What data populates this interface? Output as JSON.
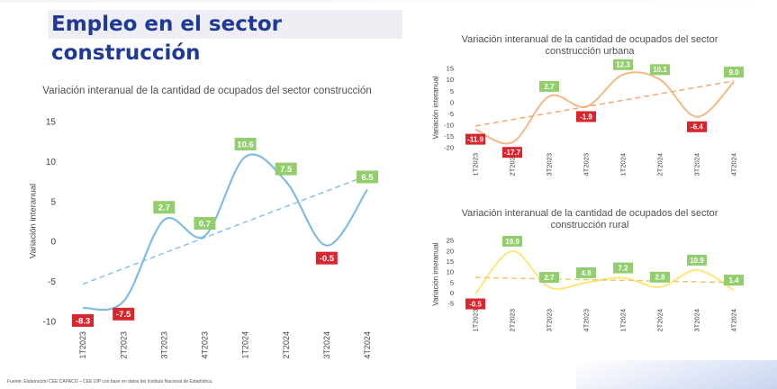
{
  "page_title": "Empleo en el sector construcción",
  "footer": "Fuente: Elaboración CEE CAPACO – CEE UIP con base en datos del Instituto Nacional de Estadística.",
  "chart_data": [
    {
      "id": "total",
      "type": "line",
      "title": "Variación interanual de la cantidad de ocupados del sector construcción",
      "ylabel": "Variación interanual",
      "categories": [
        "1T2023",
        "2T2023",
        "3T2023",
        "4T2023",
        "1T2024",
        "2T2024",
        "3T2024",
        "4T2024"
      ],
      "values": [
        -8.3,
        -7.5,
        2.7,
        0.7,
        10.6,
        7.5,
        -0.5,
        6.5
      ],
      "ylim": [
        -10,
        15
      ],
      "yticks": [
        -10,
        -5,
        0,
        5,
        10,
        15
      ],
      "trendline": true,
      "colors": {
        "line": "#7fbde4",
        "trend": "#7fbde4",
        "positive": "#92cd6e",
        "negative": "#d9262e"
      }
    },
    {
      "id": "urbana",
      "type": "line",
      "title": "Variación interanual de la cantidad de ocupados del sector construcción urbana",
      "ylabel": "Variación interanual",
      "categories": [
        "1T2023",
        "2T2023",
        "3T2023",
        "4T2023",
        "1T2024",
        "2T2024",
        "3T2024",
        "4T2024"
      ],
      "values": [
        -11.9,
        -17.7,
        2.7,
        -1.9,
        12.3,
        10.1,
        -6.4,
        9.0
      ],
      "ylim": [
        -20,
        15
      ],
      "yticks": [
        -20,
        -15,
        -10,
        -5,
        0,
        5,
        10,
        15
      ],
      "trendline": true,
      "colors": {
        "line": "#f5b887",
        "trend": "#f2a56a",
        "positive": "#92cd6e",
        "negative": "#d9262e"
      }
    },
    {
      "id": "rural",
      "type": "line",
      "title": "Variación interanual de la cantidad de ocupados del sector construcción rural",
      "ylabel": "Variación interanual",
      "categories": [
        "1T2023",
        "2T2023",
        "3T2023",
        "4T2023",
        "1T2024",
        "2T2024",
        "3T2024",
        "4T2024"
      ],
      "values": [
        -0.5,
        19.9,
        2.7,
        4.9,
        7.2,
        2.8,
        10.9,
        1.4
      ],
      "ylim": [
        -5,
        25
      ],
      "yticks": [
        -5,
        0,
        5,
        10,
        15,
        20,
        25
      ],
      "trendline": true,
      "colors": {
        "line": "#fde77a",
        "trend": "#f0c46a",
        "positive": "#92cd6e",
        "negative": "#d9262e"
      }
    }
  ]
}
